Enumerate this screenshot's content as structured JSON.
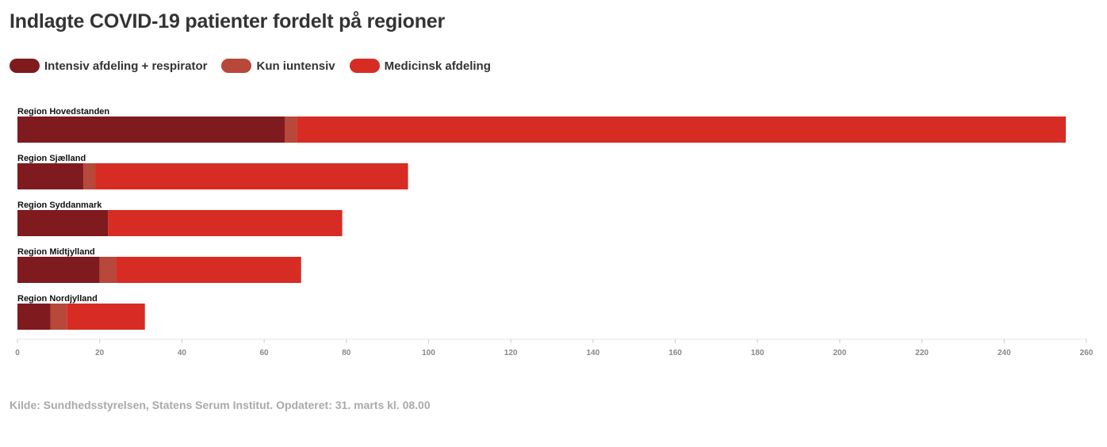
{
  "colors": {
    "intensiv": "#7f1a1f",
    "kun": "#b7483a",
    "medicinsk": "#d72c23",
    "axis": "#e5e5e5",
    "tick_text": "#888888"
  },
  "legend": [
    {
      "label": "Intensiv afdeling + respirator",
      "color_key": "intensiv"
    },
    {
      "label": "Kun iuntensiv",
      "color_key": "kun"
    },
    {
      "label": "Medicinsk afdeling",
      "color_key": "medicinsk"
    }
  ],
  "chart_data": {
    "type": "bar",
    "orientation": "horizontal",
    "stacked": true,
    "title": "Indlagte COVID-19 patienter fordelt på regioner",
    "categories": [
      "Region Hovedstanden",
      "Region Sjælland",
      "Region Syddanmark",
      "Region Midtjylland",
      "Region Nordjylland"
    ],
    "series": [
      {
        "name": "Intensiv afdeling + respirator",
        "color_key": "intensiv",
        "values": [
          65,
          16,
          22,
          20,
          8
        ]
      },
      {
        "name": "Kun iuntensiv",
        "color_key": "kun",
        "values": [
          3,
          3,
          0,
          4,
          4
        ]
      },
      {
        "name": "Medicinsk afdeling",
        "color_key": "medicinsk",
        "values": [
          187,
          76,
          57,
          45,
          19
        ]
      }
    ],
    "xlim": [
      0,
      260
    ],
    "xticks": [
      "0",
      "20",
      "40",
      "60",
      "80",
      "100",
      "120",
      "140",
      "160",
      "180",
      "200",
      "220",
      "240",
      "260"
    ],
    "xlabel": "",
    "ylabel": "",
    "grid": false,
    "legend_position": "top-left",
    "source": "Kilde: Sundhedsstyrelsen, Statens Serum Institut. Opdateret: 31. marts kl. 08.00"
  }
}
